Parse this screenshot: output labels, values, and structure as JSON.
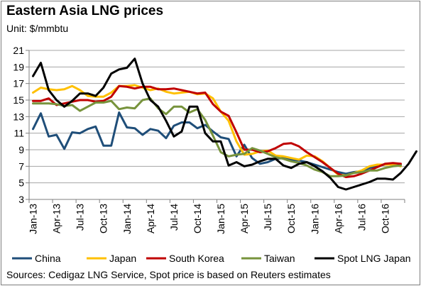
{
  "chart_data": {
    "type": "line",
    "title": "Eastern Asia LNG prices",
    "subtitle": "Unit: $/mmbtu",
    "source": "Sources: Cedigaz LNG Service, Spot price is based on Reuters estimates",
    "x_tick_labels": [
      "Jan-13",
      "Apr-13",
      "Jul-13",
      "Oct-13",
      "Jan-14",
      "Apr-14",
      "Jul-14",
      "Oct-14",
      "Jan-15",
      "Apr-15",
      "Jul-15",
      "Oct-15",
      "Jan-16",
      "Apr-16",
      "Jul-16",
      "Oct-16"
    ],
    "ylim": [
      3,
      21
    ],
    "yticks": [
      3,
      5,
      7,
      9,
      11,
      13,
      15,
      17,
      19,
      21
    ],
    "grid": true,
    "legend_position": "bottom",
    "series": [
      {
        "name": "China",
        "color": "#1f4e79",
        "values": [
          11.5,
          13.4,
          10.6,
          10.8,
          9.1,
          11.1,
          11,
          11.5,
          11.8,
          9.5,
          9.5,
          13.5,
          11.7,
          11.6,
          10.8,
          11.5,
          11.3,
          10.4,
          11.9,
          12.3,
          12.3,
          11.6,
          12,
          11.2,
          10.5,
          10.3,
          8.2,
          9.6,
          8,
          7.3,
          7.5,
          7.9,
          8,
          7.8,
          7.7,
          7.5,
          7.2,
          6.9,
          6.6,
          6.3,
          6.1,
          6.3,
          6.4,
          6.8,
          7.1,
          7.2,
          7.3,
          7.2
        ]
      },
      {
        "name": "Japan",
        "color": "#ffc000",
        "values": [
          15.9,
          16.5,
          16.3,
          16.2,
          16.3,
          16.7,
          16.2,
          15.5,
          15.4,
          15.4,
          15.9,
          16.7,
          16.7,
          16.8,
          16.5,
          16.2,
          16.4,
          16,
          15.8,
          15.9,
          16,
          15.7,
          15.8,
          15.2,
          13.6,
          12.5,
          10,
          8.4,
          8.5,
          8.8,
          8.9,
          8.3,
          8.2,
          8,
          7.8,
          8.3,
          8.2,
          7.6,
          6.8,
          6,
          5.9,
          6.2,
          6.5,
          7,
          7.2,
          7.2,
          7.2,
          7
        ]
      },
      {
        "name": "South Korea",
        "color": "#c00000",
        "values": [
          14.9,
          14.9,
          15.2,
          14.4,
          14.6,
          14.8,
          15,
          15,
          14.8,
          14.9,
          15.4,
          16.7,
          16.6,
          16.4,
          16.6,
          16.6,
          16.3,
          16.3,
          16.4,
          16.2,
          16,
          15.8,
          15.9,
          14.5,
          13.6,
          13.1,
          11.1,
          9,
          9,
          8.7,
          8.8,
          9.2,
          9.7,
          9.8,
          9.4,
          8.7,
          8.1,
          7.5,
          6.8,
          6.1,
          5.7,
          5.8,
          6.1,
          6.5,
          6.9,
          7.3,
          7.4,
          7.3
        ]
      },
      {
        "name": "Taiwan",
        "color": "#77933c",
        "values": [
          14.6,
          14.6,
          14.6,
          14.5,
          14.3,
          14.4,
          13.7,
          14.2,
          14.7,
          14.7,
          14.9,
          13.9,
          14.1,
          14,
          15,
          15.2,
          14,
          13.3,
          14.2,
          14.2,
          13.5,
          13.9,
          12.6,
          10.7,
          8.7,
          8.2,
          8.4,
          8.5,
          9.2,
          8.9,
          8.5,
          8.1,
          7.9,
          7.6,
          7.4,
          7.1,
          6.6,
          6.3,
          5.8,
          5.8,
          5.9,
          6.2,
          6.3,
          6.5,
          6.5,
          6.8,
          7,
          7.1
        ]
      },
      {
        "name": "Spot LNG Japan",
        "color": "#000000",
        "values": [
          17.9,
          19.5,
          16.2,
          15,
          14.2,
          14.9,
          15.8,
          15.8,
          15.5,
          16.5,
          18.2,
          18.7,
          18.9,
          20,
          17,
          15,
          14.2,
          12.5,
          10.6,
          11.2,
          14.2,
          14.2,
          11,
          10,
          10,
          7.1,
          7.5,
          7,
          7.2,
          7.6,
          7.9,
          7.9,
          7.1,
          6.8,
          7.3,
          7.5,
          7,
          6.4,
          5.6,
          4.5,
          4.2,
          4.5,
          4.8,
          5.1,
          5.5,
          5.5,
          5.4,
          6.2,
          7.3,
          8.8
        ]
      }
    ]
  }
}
